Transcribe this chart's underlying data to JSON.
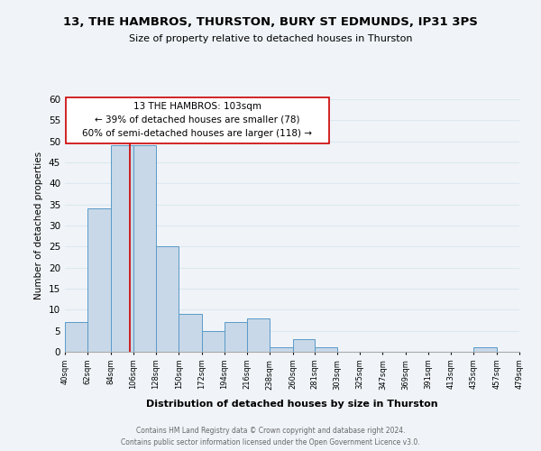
{
  "title": "13, THE HAMBROS, THURSTON, BURY ST EDMUNDS, IP31 3PS",
  "subtitle": "Size of property relative to detached houses in Thurston",
  "xlabel": "Distribution of detached houses by size in Thurston",
  "ylabel": "Number of detached properties",
  "bar_color": "#c8d8e8",
  "bar_edge_color": "#5a9ac8",
  "bin_edges": [
    40,
    62,
    84,
    106,
    128,
    150,
    172,
    194,
    216,
    238,
    260,
    281,
    303,
    325,
    347,
    369,
    391,
    413,
    435,
    457,
    479
  ],
  "bar_heights": [
    7,
    34,
    49,
    49,
    25,
    9,
    5,
    7,
    8,
    1,
    3,
    1,
    0,
    0,
    0,
    0,
    0,
    0,
    1,
    0
  ],
  "tick_labels": [
    "40sqm",
    "62sqm",
    "84sqm",
    "106sqm",
    "128sqm",
    "150sqm",
    "172sqm",
    "194sqm",
    "216sqm",
    "238sqm",
    "260sqm",
    "281sqm",
    "303sqm",
    "325sqm",
    "347sqm",
    "369sqm",
    "391sqm",
    "413sqm",
    "435sqm",
    "457sqm",
    "479sqm"
  ],
  "ylim": [
    0,
    60
  ],
  "property_line_x": 103,
  "property_line_color": "#cc0000",
  "annotation_title": "13 THE HAMBROS: 103sqm",
  "annotation_line1": "← 39% of detached houses are smaller (78)",
  "annotation_line2": "60% of semi-detached houses are larger (118) →",
  "annotation_box_edge": "#cc0000",
  "footer_line1": "Contains HM Land Registry data © Crown copyright and database right 2024.",
  "footer_line2": "Contains public sector information licensed under the Open Government Licence v3.0.",
  "background_color": "#f0f4f8",
  "grid_color": "#dce8f0"
}
